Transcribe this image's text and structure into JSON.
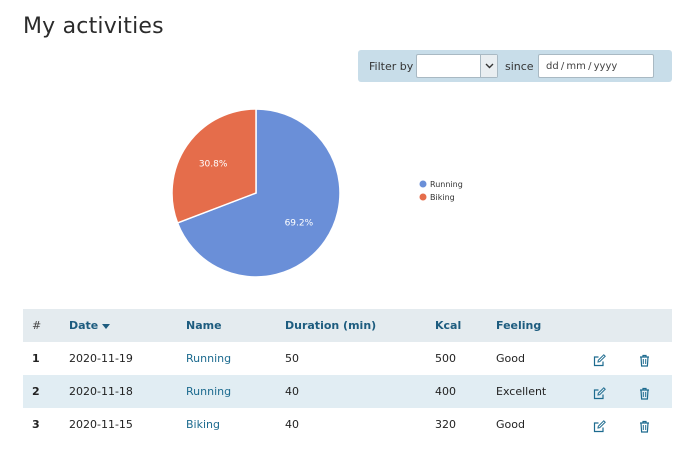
{
  "page": {
    "title": "My activities"
  },
  "filter": {
    "label": "Filter by",
    "select_value": "",
    "since_label": "since",
    "date_placeholder": "dd / mm / yyyy"
  },
  "chart_data": {
    "type": "pie",
    "slices": [
      {
        "name": "Running",
        "value": 69.2,
        "label": "69.2%",
        "color": "#6a8fd8"
      },
      {
        "name": "Biking",
        "value": 30.8,
        "label": "30.8%",
        "color": "#e56d4b"
      }
    ],
    "legend": [
      "Running",
      "Biking"
    ],
    "legend_position": "right"
  },
  "table": {
    "headers": {
      "num": "#",
      "date": "Date",
      "name": "Name",
      "duration": "Duration (min)",
      "kcal": "Kcal",
      "feeling": "Feeling"
    },
    "sort": {
      "column": "date",
      "direction": "desc"
    },
    "rows": [
      {
        "num": "1",
        "date": "2020-11-19",
        "name": "Running",
        "duration": "50",
        "kcal": "500",
        "feeling": "Good"
      },
      {
        "num": "2",
        "date": "2020-11-18",
        "name": "Running",
        "duration": "40",
        "kcal": "400",
        "feeling": "Excellent"
      },
      {
        "num": "3",
        "date": "2020-11-15",
        "name": "Biking",
        "duration": "40",
        "kcal": "320",
        "feeling": "Good"
      }
    ]
  },
  "icons": {
    "edit": "edit-icon",
    "delete": "trash-icon",
    "dropdown": "chevron-down-icon",
    "sort": "caret-down-icon"
  },
  "colors": {
    "link": "#1d6b8f",
    "header_bg": "#e4ebef",
    "alt_row_bg": "#e1edf3",
    "filter_bg": "#c8dde9"
  }
}
